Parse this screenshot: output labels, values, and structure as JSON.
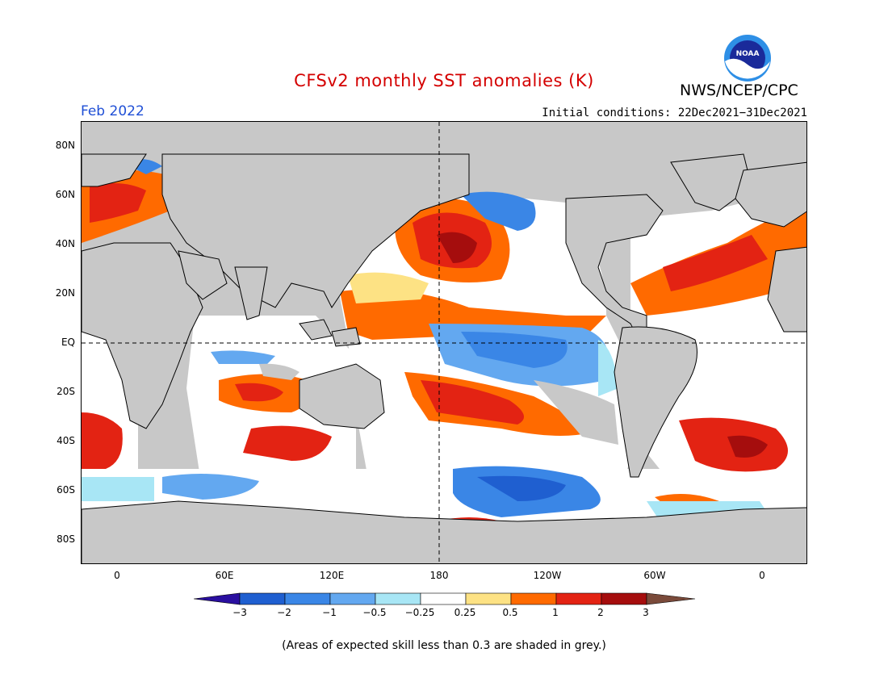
{
  "title": "CFSv2 monthly SST anomalies (K)",
  "org": "NWS/NCEP/CPC",
  "logo_text": "NOAA",
  "month": "Feb 2022",
  "initial_conditions": "Initial conditions: 22Dec2021−31Dec2021",
  "footnote": "(Areas of expected skill less than 0.3 are shaded in grey.)",
  "lat_labels": [
    "80N",
    "60N",
    "40N",
    "20N",
    "EQ",
    "20S",
    "40S",
    "60S",
    "80S"
  ],
  "lon_labels": [
    "0",
    "60E",
    "120E",
    "180",
    "120W",
    "60W",
    "0"
  ],
  "colorbar": {
    "ticks": [
      "−3",
      "−2",
      "−1",
      "−0.5",
      "−0.25",
      "0.25",
      "0.5",
      "1",
      "2",
      "3"
    ],
    "colors": [
      "#2a0fa0",
      "#1f5fd0",
      "#3a86e6",
      "#63a8f0",
      "#a8e6f5",
      "#ffffff",
      "#fde284",
      "#ff6a00",
      "#e32313",
      "#a50d0d",
      "#7a4a3a"
    ]
  },
  "colors": {
    "land": "#c8c8c8",
    "title": "#d40000",
    "month": "#1f4fd6"
  }
}
